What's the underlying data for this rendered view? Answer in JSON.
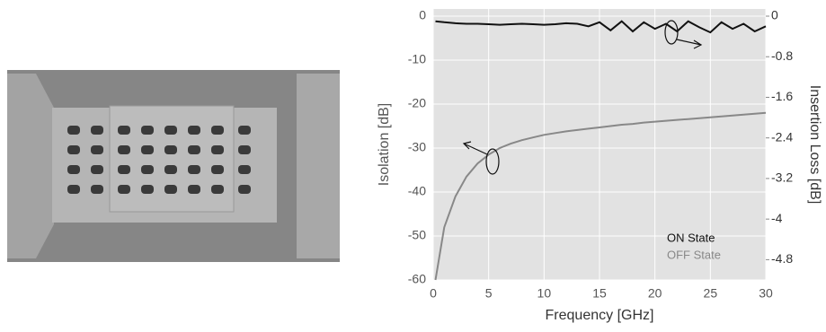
{
  "chart_data": {
    "type": "line",
    "x_label": "Frequency [GHz]",
    "y_label": "Isolation [dB]",
    "y2_label": "Insertion Loss [dB]",
    "x": [
      0.2,
      1,
      2,
      3,
      4,
      5,
      6,
      7,
      8,
      9,
      10,
      11,
      12,
      13,
      14,
      15,
      16,
      17,
      18,
      19,
      20,
      21,
      22,
      23,
      24,
      25,
      26,
      27,
      28,
      29,
      30
    ],
    "xlim": [
      0,
      30
    ],
    "xticks": [
      0,
      5,
      10,
      15,
      20,
      25,
      30
    ],
    "ylim": [
      -60,
      0
    ],
    "yticks": [
      0,
      -10,
      -20,
      -30,
      -40,
      -50,
      -60
    ],
    "y2lim": [
      -5.2,
      0
    ],
    "y2ticks": [
      0,
      -0.8,
      -1.6,
      -2.4,
      -3.2,
      -4,
      -4.8
    ],
    "grid": true,
    "series": [
      {
        "name": "ON State",
        "color": "#111111",
        "axis": "y2",
        "values": [
          -0.1,
          -0.12,
          -0.14,
          -0.15,
          -0.15,
          -0.16,
          -0.17,
          -0.16,
          -0.15,
          -0.16,
          -0.17,
          -0.16,
          -0.14,
          -0.15,
          -0.2,
          -0.12,
          -0.28,
          -0.1,
          -0.3,
          -0.12,
          -0.25,
          -0.15,
          -0.3,
          -0.1,
          -0.22,
          -0.32,
          -0.12,
          -0.25,
          -0.15,
          -0.3,
          -0.2
        ]
      },
      {
        "name": "OFF State",
        "color": "#888888",
        "axis": "y",
        "values": [
          -60,
          -48,
          -41,
          -36.5,
          -33.5,
          -31.5,
          -30,
          -29,
          -28.2,
          -27.6,
          -27,
          -26.6,
          -26.2,
          -25.9,
          -25.6,
          -25.3,
          -25,
          -24.7,
          -24.5,
          -24.2,
          -24,
          -23.8,
          -23.6,
          -23.4,
          -23.2,
          -23,
          -22.8,
          -22.6,
          -22.4,
          -22.2,
          -22
        ]
      }
    ]
  }
}
